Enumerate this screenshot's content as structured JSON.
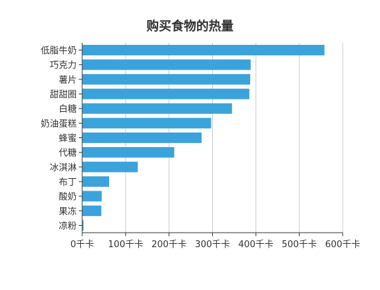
{
  "chart_data": {
    "type": "bar",
    "orientation": "horizontal",
    "title": "购买食物的热量",
    "categories": [
      "低脂牛奶",
      "巧克力",
      "薯片",
      "甜甜圈",
      "白糖",
      "奶油蛋糕",
      "蜂蜜",
      "代糖",
      "冰淇淋",
      "布丁",
      "酸奶",
      "果冻",
      "凉粉"
    ],
    "values": [
      558,
      388,
      387,
      385,
      345,
      297,
      275,
      212,
      128,
      62,
      45,
      44,
      3
    ],
    "xlim": [
      0,
      600
    ],
    "xticks": [
      0,
      100,
      200,
      300,
      400,
      500,
      600
    ],
    "tick_unit": "千卡",
    "bar_color": "#3ba3db",
    "grid": true,
    "xlabel": "",
    "ylabel": ""
  }
}
